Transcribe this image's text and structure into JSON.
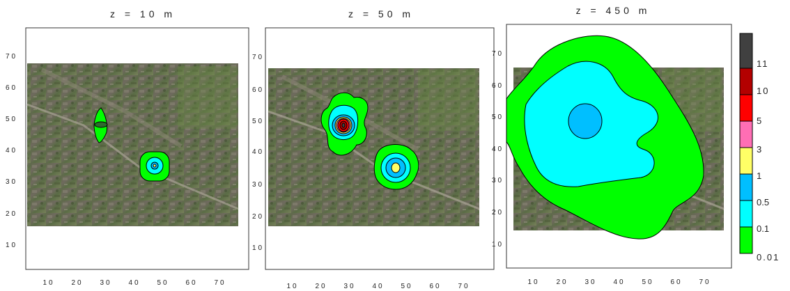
{
  "chart_data": {
    "type": "contour",
    "panels": [
      {
        "title": "z = 10 m",
        "xticks": [
          "10",
          "20",
          "30",
          "40",
          "50",
          "60",
          "70"
        ],
        "yticks": [
          "10",
          "20",
          "30",
          "40",
          "50",
          "60",
          "70"
        ],
        "xlim": [
          0,
          80
        ],
        "ylim": [
          0,
          80
        ],
        "sources": [
          {
            "x": 28,
            "y": 48,
            "max_level": "0.1"
          },
          {
            "x": 47,
            "y": 35,
            "max_level": "1"
          }
        ]
      },
      {
        "title": "z = 50 m",
        "xticks": [
          "10",
          "20",
          "30",
          "40",
          "50",
          "60",
          "70"
        ],
        "yticks": [
          "10",
          "20",
          "30",
          "40",
          "50",
          "60",
          "70"
        ],
        "xlim": [
          0,
          80
        ],
        "ylim": [
          0,
          80
        ],
        "sources": [
          {
            "x": 28,
            "y": 48,
            "max_level": "11"
          },
          {
            "x": 47,
            "y": 34,
            "max_level": "3"
          }
        ]
      },
      {
        "title": "z = 450 m",
        "xticks": [
          "10",
          "20",
          "30",
          "40",
          "50",
          "60",
          "70"
        ],
        "yticks": [
          "10",
          "20",
          "30",
          "40",
          "50",
          "60",
          "70"
        ],
        "xlim": [
          0,
          80
        ],
        "ylim": [
          0,
          80
        ],
        "sources": [
          {
            "x": 28,
            "y": 48,
            "max_level": "1"
          }
        ]
      }
    ],
    "legend": {
      "levels": [
        "0.01",
        "0.1",
        "0.5",
        "1",
        "3",
        "5",
        "10",
        "11"
      ],
      "colors": [
        "#00ff00",
        "#00ffff",
        "#00bfff",
        "#ffff66",
        "#ff6eb4",
        "#ff0000",
        "#b30000",
        "#404040"
      ]
    }
  }
}
